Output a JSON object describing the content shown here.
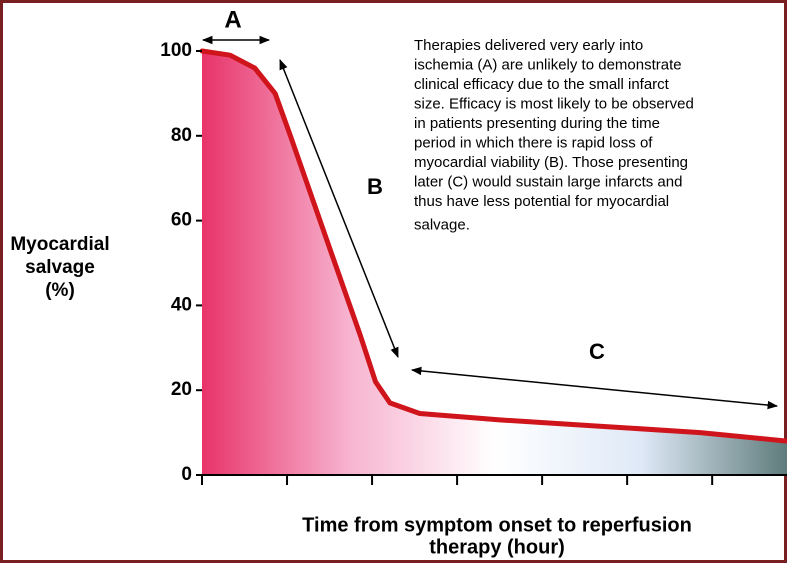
{
  "chart_data": {
    "type": "area",
    "x": [
      0,
      0.33,
      0.62,
      0.86,
      1.04,
      1.51,
      1.86,
      2.04,
      2.21,
      2.56,
      3.5,
      4.68,
      5.86,
      6.88
    ],
    "values": [
      100,
      99,
      96,
      90,
      80,
      53,
      33,
      22,
      17,
      14.5,
      13,
      11.5,
      10,
      8
    ],
    "color": "#d0141c",
    "fill_colors": [
      "#e8336a",
      "#f7b3cf",
      "#ffffff",
      "#dfe9f7",
      "#5f7c7c"
    ],
    "xlim": [
      0,
      6.88
    ],
    "xticks": [
      0,
      1,
      2,
      3,
      4,
      5,
      6
    ],
    "ylim": [
      0,
      100
    ],
    "yticks": [
      0,
      20,
      40,
      60,
      80,
      100
    ],
    "y_label": [
      "Myocardial",
      "salvage",
      "(%)"
    ],
    "x_label": [
      "Time from symptom onset to reperfusion",
      "therapy (hour)"
    ],
    "annotations": [
      "A",
      "B",
      "C"
    ],
    "note": [
      "Therapies delivered very early into",
      "ischemia (A) are unlikely to demonstrate",
      "clinical efficacy due to the small infarct",
      "size.  Efficacy is most likely to be observed",
      "in patients presenting during the time",
      "period in which there is rapid loss of",
      "myocardial viability (B).  Those presenting",
      "later (C) would sustain large infarcts and",
      "thus have less potential for myocardial",
      "salvage."
    ]
  }
}
